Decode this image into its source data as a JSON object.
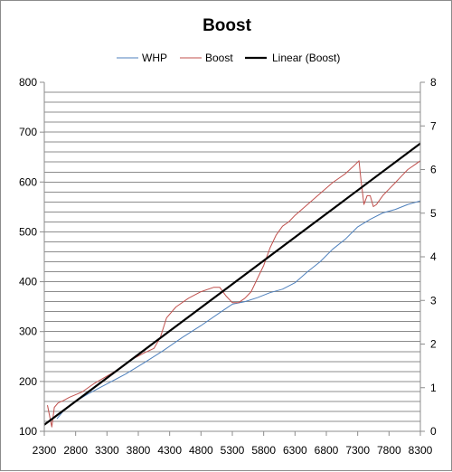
{
  "chart_data": {
    "type": "line",
    "title": "Boost",
    "legend_position": "top",
    "grid": true,
    "x_ticks": [
      "2300",
      "2800",
      "3300",
      "3800",
      "4300",
      "4800",
      "5300",
      "5800",
      "6300",
      "6800",
      "7300",
      "7800",
      "8300"
    ],
    "xlim": [
      2300,
      8300
    ],
    "left_axis": {
      "ylim": [
        100,
        800
      ],
      "ticks": [
        "100",
        "200",
        "300",
        "400",
        "500",
        "600",
        "700",
        "800"
      ]
    },
    "right_axis": {
      "ylim": [
        0,
        8
      ],
      "ticks": [
        "0",
        "1",
        "2",
        "3",
        "4",
        "5",
        "6",
        "7",
        "8"
      ]
    },
    "series": [
      {
        "name": "WHP",
        "axis": "left",
        "color": "#4f81bd",
        "x": [
          2500,
          2600,
          2800,
          3000,
          3300,
          3600,
          3900,
          4200,
          4500,
          4800,
          5100,
          5300,
          5500,
          5700,
          5900,
          6100,
          6300,
          6500,
          6700,
          6900,
          7100,
          7300,
          7500,
          7700,
          7900,
          8100,
          8300
        ],
        "y": [
          125,
          140,
          160,
          175,
          195,
          215,
          238,
          262,
          288,
          312,
          338,
          355,
          360,
          368,
          378,
          385,
          398,
          420,
          440,
          465,
          485,
          510,
          525,
          538,
          545,
          555,
          562
        ]
      },
      {
        "name": "Boost",
        "axis": "right",
        "color": "#c0504d",
        "x": [
          2350,
          2420,
          2460,
          2520,
          2600,
          2700,
          2900,
          3100,
          3400,
          3700,
          3900,
          4050,
          4150,
          4250,
          4400,
          4600,
          4800,
          5000,
          5100,
          5200,
          5300,
          5400,
          5500,
          5600,
          5700,
          5800,
          5900,
          6000,
          6100,
          6200,
          6300,
          6500,
          6700,
          6900,
          7100,
          7250,
          7320,
          7350,
          7400,
          7450,
          7500,
          7550,
          7600,
          7700,
          7800,
          7900,
          8000,
          8100,
          8200,
          8300
        ],
        "y": [
          0.6,
          0.1,
          0.55,
          0.65,
          0.7,
          0.78,
          0.9,
          1.1,
          1.35,
          1.65,
          1.8,
          1.9,
          2.15,
          2.6,
          2.85,
          3.05,
          3.2,
          3.3,
          3.3,
          3.1,
          2.95,
          2.95,
          3.05,
          3.2,
          3.5,
          3.8,
          4.2,
          4.5,
          4.7,
          4.8,
          4.95,
          5.2,
          5.45,
          5.7,
          5.9,
          6.1,
          6.2,
          5.8,
          5.2,
          5.4,
          5.4,
          5.15,
          5.2,
          5.4,
          5.55,
          5.7,
          5.85,
          6.0,
          6.1,
          6.2
        ]
      },
      {
        "name": "Linear (Boost)",
        "axis": "right",
        "color": "#000000",
        "x": [
          2300,
          8300
        ],
        "y": [
          0.15,
          6.6
        ]
      }
    ]
  }
}
